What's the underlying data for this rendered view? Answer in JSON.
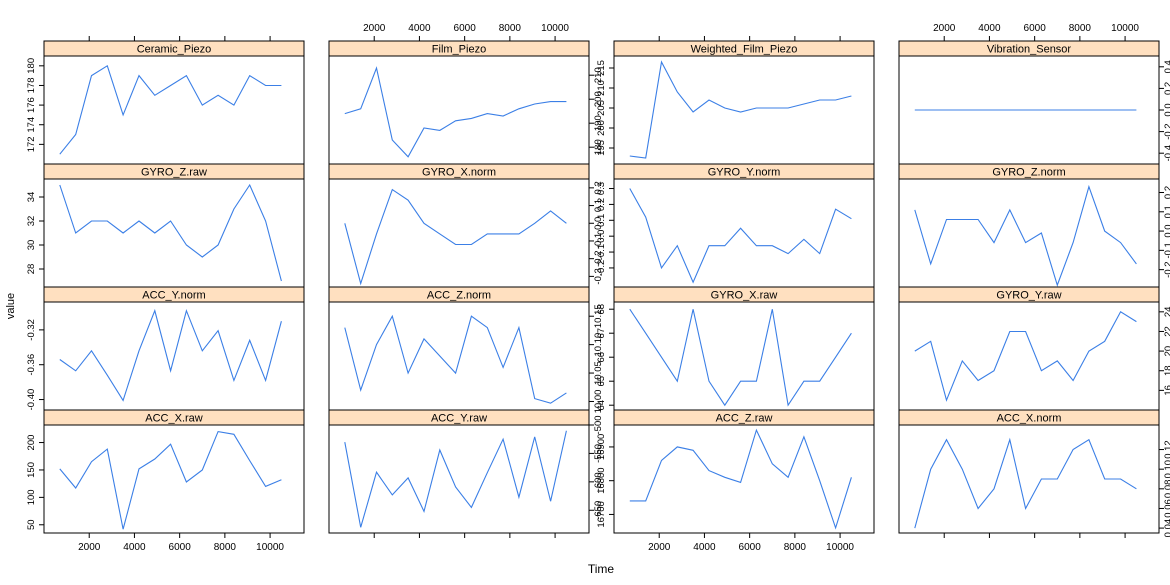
{
  "chart_data": {
    "type": "line",
    "xlabel": "Time",
    "ylabel": "value",
    "x_ticks": [
      2000,
      4000,
      6000,
      8000,
      10000
    ],
    "x_range": [
      0,
      11500
    ],
    "x": [
      700,
      1400,
      2100,
      2800,
      3500,
      4200,
      4900,
      5600,
      6300,
      7000,
      7700,
      8400,
      9100,
      9800,
      10500
    ],
    "line_color": "#3b7fe6",
    "strip_color": "#ffe0c0",
    "panels": [
      {
        "title": "Ceramic_Piezo",
        "ylim": [
          170,
          181
        ],
        "yticks": [
          "172",
          "174",
          "176",
          "178",
          "180"
        ],
        "ytick_values": [
          172,
          174,
          176,
          178,
          180
        ],
        "values": [
          171,
          173,
          179,
          180,
          175,
          179,
          177,
          178,
          179,
          176,
          177,
          176,
          179,
          178,
          178
        ]
      },
      {
        "title": "Film_Piezo",
        "ylim": [
          173,
          218
        ],
        "yticks": [
          "180",
          "190",
          "200",
          "210"
        ],
        "ytick_values": [
          180,
          190,
          200,
          210
        ],
        "values": [
          194,
          196,
          213,
          183,
          176,
          188,
          187,
          191,
          192,
          194,
          193,
          196,
          198,
          199,
          199
        ]
      },
      {
        "title": "Weighted_Film_Piezo",
        "ylim": [
          191,
          218
        ],
        "yticks": [
          "195",
          "200",
          "205",
          "210",
          "215"
        ],
        "ytick_values": [
          195,
          200,
          205,
          210,
          215
        ],
        "values": [
          193,
          192.5,
          216.5,
          209,
          204,
          207,
          205,
          204,
          205,
          205,
          205,
          206,
          207,
          207,
          208
        ]
      },
      {
        "title": "Vibration_Sensor",
        "ylim": [
          -0.5,
          0.5
        ],
        "yticks": [
          "-0.4",
          "-0.2",
          "0.0",
          "0.2",
          "0.4"
        ],
        "ytick_values": [
          -0.4,
          -0.2,
          0.0,
          0.2,
          0.4
        ],
        "values": [
          0,
          0,
          0,
          0,
          0,
          0,
          0,
          0,
          0,
          0,
          0,
          0,
          0,
          0,
          0
        ]
      },
      {
        "title": "GYRO_Z.raw",
        "ylim": [
          26.5,
          35.5
        ],
        "yticks": [
          "28",
          "30",
          "32",
          "34"
        ],
        "ytick_values": [
          28,
          30,
          32,
          34
        ],
        "values": [
          35,
          31,
          32,
          32,
          31,
          32,
          31,
          32,
          30,
          29,
          30,
          33,
          35,
          32,
          27
        ]
      },
      {
        "title": "GYRO_X.norm",
        "ylim": [
          -0.36,
          0.25
        ],
        "yticks": [
          "-0.3",
          "-0.2",
          "-0.1",
          "0.0",
          "0.1",
          "0.2"
        ],
        "ytick_values": [
          -0.3,
          -0.2,
          -0.1,
          0.0,
          0.1,
          0.2
        ],
        "values": [
          0.0,
          -0.34,
          -0.06,
          0.19,
          0.13,
          0.0,
          -0.06,
          -0.12,
          -0.12,
          -0.06,
          -0.06,
          -0.06,
          0.0,
          0.07,
          0.0
        ]
      },
      {
        "title": "GYRO_Y.norm",
        "ylim": [
          -0.32,
          0.36
        ],
        "yticks": [
          "-0.2",
          "-0.1",
          "0.0",
          "0.1",
          "0.2",
          "0.3"
        ],
        "ytick_values": [
          -0.2,
          -0.1,
          0.0,
          0.1,
          0.2,
          0.3
        ],
        "values": [
          0.3,
          0.12,
          -0.2,
          -0.06,
          -0.29,
          -0.06,
          -0.06,
          0.05,
          -0.06,
          -0.06,
          -0.11,
          -0.02,
          -0.11,
          0.17,
          0.11
        ]
      },
      {
        "title": "GYRO_Z.norm",
        "ylim": [
          -0.29,
          0.27
        ],
        "yticks": [
          "-0.2",
          "-0.1",
          "0.0",
          "0.1",
          "0.2"
        ],
        "ytick_values": [
          -0.2,
          -0.1,
          0.0,
          0.1,
          0.2
        ],
        "values": [
          0.11,
          -0.17,
          0.06,
          0.06,
          0.06,
          -0.06,
          0.11,
          -0.06,
          -0.01,
          -0.28,
          -0.06,
          0.23,
          0.0,
          -0.06,
          -0.17
        ]
      },
      {
        "title": "ACC_Y.norm",
        "ylim": [
          -0.412,
          -0.288
        ],
        "yticks": [
          "-0.40",
          "-0.36",
          "-0.32"
        ],
        "ytick_values": [
          -0.4,
          -0.36,
          -0.32
        ],
        "values": [
          -0.354,
          -0.367,
          -0.344,
          -0.372,
          -0.401,
          -0.344,
          -0.298,
          -0.367,
          -0.298,
          -0.344,
          -0.321,
          -0.378,
          -0.332,
          -0.378,
          -0.31
        ]
      },
      {
        "title": "ACC_Z.norm",
        "ylim": [
          9.985,
          10.175
        ],
        "yticks": [
          "10.00",
          "10.05",
          "10.10",
          "10.15"
        ],
        "ytick_values": [
          10.0,
          10.05,
          10.1,
          10.15
        ],
        "values": [
          10.13,
          10.02,
          10.1,
          10.15,
          10.05,
          10.11,
          10.08,
          10.05,
          10.15,
          10.13,
          10.06,
          10.13,
          10.005,
          9.997,
          10.015
        ]
      },
      {
        "title": "GYRO_X.raw",
        "ylim": [
          63.8,
          68.3
        ],
        "yticks": [
          "64",
          "65",
          "66",
          "67",
          "68"
        ],
        "ytick_values": [
          64,
          65,
          66,
          67,
          68
        ],
        "values": [
          68,
          67,
          66,
          65,
          68,
          65,
          64,
          65,
          65,
          68,
          64,
          65,
          65,
          66,
          67
        ]
      },
      {
        "title": "GYRO_Y.raw",
        "ylim": [
          14,
          25
        ],
        "yticks": [
          "16",
          "18",
          "20",
          "22",
          "24"
        ],
        "ytick_values": [
          16,
          18,
          20,
          22,
          24
        ],
        "values": [
          20,
          21,
          15,
          19,
          17,
          18,
          22,
          22,
          18,
          19,
          17,
          20,
          21,
          24,
          23
        ]
      },
      {
        "title": "ACC_X.raw",
        "ylim": [
          35,
          232
        ],
        "yticks": [
          "50",
          "100",
          "150",
          "200"
        ],
        "ytick_values": [
          50,
          100,
          150,
          200
        ],
        "values": [
          152,
          117,
          165,
          188,
          42,
          152,
          170,
          197,
          128,
          150,
          220,
          215,
          167,
          120,
          132
        ]
      },
      {
        "title": "ACC_Y.raw",
        "ylim": [
          -690,
          -500
        ],
        "yticks": [
          "-650",
          "-600",
          "-550",
          "-500"
        ],
        "ytick_values": [
          -650,
          -600,
          -550,
          -500
        ],
        "values": [
          -530,
          -680,
          -583,
          -623,
          -593,
          -652,
          -544,
          -609,
          -645,
          -584,
          -525,
          -627,
          -521,
          -634,
          -510
        ]
      },
      {
        "title": "ACC_Z.raw",
        "ylim": [
          16645,
          16965
        ],
        "yticks": [
          "16700",
          "16800",
          "16900"
        ],
        "ytick_values": [
          16700,
          16800,
          16900
        ],
        "values": [
          16740,
          16740,
          16860,
          16900,
          16890,
          16830,
          16810,
          16795,
          16950,
          16850,
          16810,
          16930,
          16800,
          16660,
          16810
        ]
      },
      {
        "title": "ACC_X.norm",
        "ylim": [
          0.035,
          0.145
        ],
        "yticks": [
          "0.04",
          "0.06",
          "0.08",
          "0.10",
          "0.12"
        ],
        "ytick_values": [
          0.04,
          0.06,
          0.08,
          0.1,
          0.12
        ],
        "values": [
          0.04,
          0.1,
          0.13,
          0.1,
          0.06,
          0.08,
          0.13,
          0.06,
          0.09,
          0.09,
          0.12,
          0.13,
          0.09,
          0.09,
          0.08
        ]
      }
    ]
  }
}
